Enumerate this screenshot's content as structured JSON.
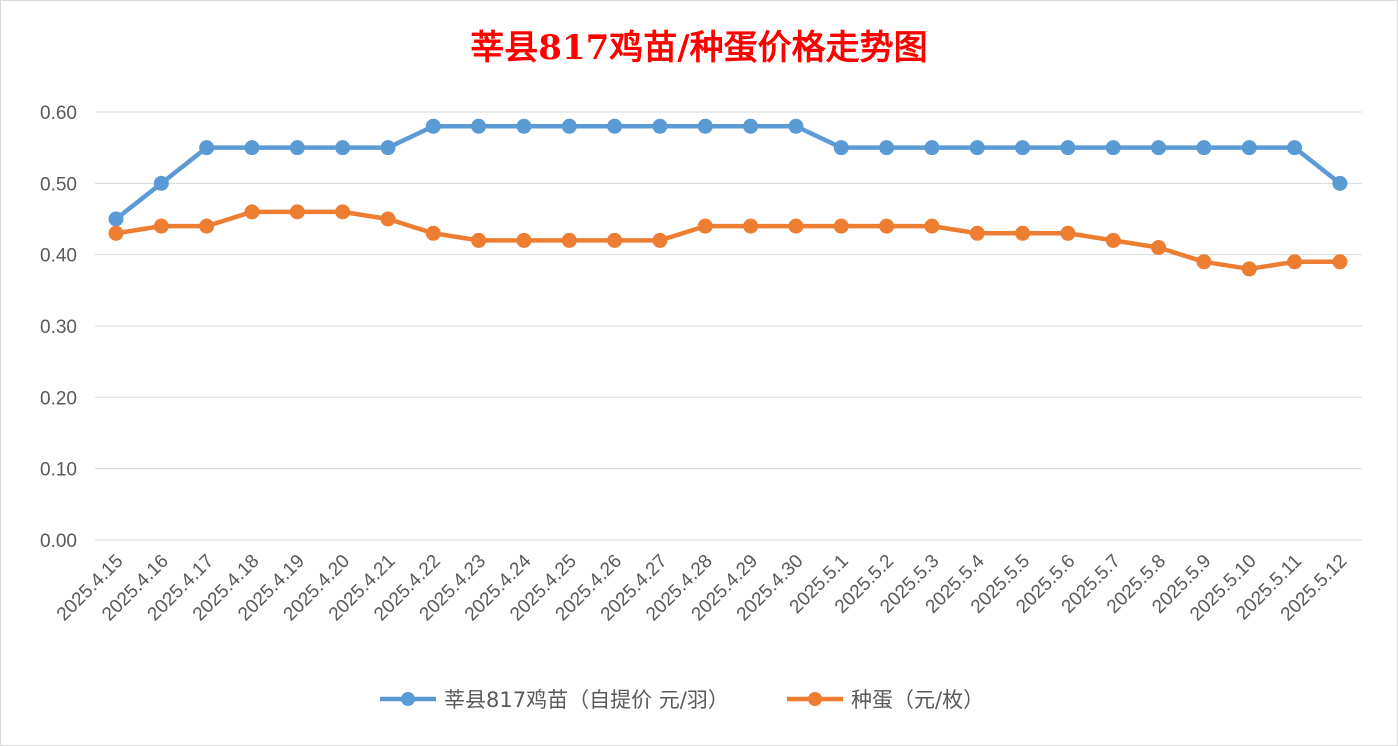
{
  "chart_data": {
    "type": "line",
    "title": "莘县817鸡苗/种蛋价格走势图",
    "xlabel": "",
    "ylabel": "",
    "ylim": [
      0,
      0.6
    ],
    "yticks": [
      "0.00",
      "0.10",
      "0.20",
      "0.30",
      "0.40",
      "0.50",
      "0.60"
    ],
    "grid": true,
    "legend_position": "bottom",
    "categories": [
      "2025.4.15",
      "2025.4.16",
      "2025.4.17",
      "2025.4.18",
      "2025.4.19",
      "2025.4.20",
      "2025.4.21",
      "2025.4.22",
      "2025.4.23",
      "2025.4.24",
      "2025.4.25",
      "2025.4.26",
      "2025.4.27",
      "2025.4.28",
      "2025.4.29",
      "2025.4.30",
      "2025.5.1",
      "2025.5.2",
      "2025.5.3",
      "2025.5.4",
      "2025.5.5",
      "2025.5.6",
      "2025.5.7",
      "2025.5.8",
      "2025.5.9",
      "2025.5.10",
      "2025.5.11",
      "2025.5.12"
    ],
    "series": [
      {
        "name": "莘县817鸡苗（自提价 元/羽）",
        "color": "#5b9bd5",
        "values": [
          0.45,
          0.5,
          0.55,
          0.55,
          0.55,
          0.55,
          0.55,
          0.58,
          0.58,
          0.58,
          0.58,
          0.58,
          0.58,
          0.58,
          0.58,
          0.58,
          0.55,
          0.55,
          0.55,
          0.55,
          0.55,
          0.55,
          0.55,
          0.55,
          0.55,
          0.55,
          0.55,
          0.5
        ]
      },
      {
        "name": "种蛋（元/枚）",
        "color": "#ed7d31",
        "values": [
          0.43,
          0.44,
          0.44,
          0.46,
          0.46,
          0.46,
          0.45,
          0.43,
          0.42,
          0.42,
          0.42,
          0.42,
          0.42,
          0.44,
          0.44,
          0.44,
          0.44,
          0.44,
          0.44,
          0.43,
          0.43,
          0.43,
          0.42,
          0.41,
          0.39,
          0.38,
          0.39,
          0.39
        ]
      }
    ]
  }
}
